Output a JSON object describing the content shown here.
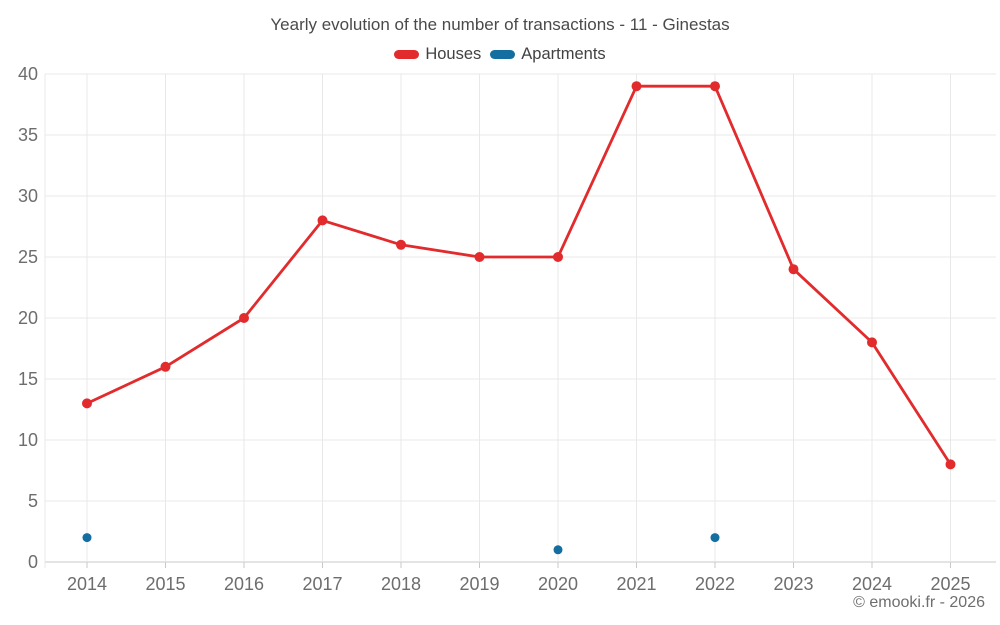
{
  "header": {
    "title": "Yearly evolution of the number of transactions - 11 - Ginestas"
  },
  "legend": {
    "items": [
      {
        "label": "Houses",
        "color": "#e12b2d"
      },
      {
        "label": "Apartments",
        "color": "#146e9f"
      }
    ]
  },
  "footer": {
    "copyright": "© emooki.fr - 2026"
  },
  "chart_data": {
    "type": "line",
    "title": "Yearly evolution of the number of transactions - 11 - Ginestas",
    "categories": [
      "2014",
      "2015",
      "2016",
      "2017",
      "2018",
      "2019",
      "2020",
      "2021",
      "2022",
      "2023",
      "2024",
      "2025"
    ],
    "series": [
      {
        "name": "Houses",
        "color": "#e12b2d",
        "line": true,
        "marker": true,
        "values": [
          13,
          16,
          20,
          28,
          26,
          25,
          25,
          39,
          39,
          24,
          18,
          8
        ]
      },
      {
        "name": "Apartments",
        "color": "#146e9f",
        "line": false,
        "marker": true,
        "values": [
          2,
          null,
          null,
          null,
          null,
          null,
          1,
          null,
          2,
          null,
          null,
          null
        ]
      }
    ],
    "xlabel": "",
    "ylabel": "",
    "ylim": [
      0,
      40
    ],
    "yticks": [
      0,
      5,
      10,
      15,
      20,
      25,
      30,
      35,
      40
    ],
    "grid": true,
    "legend_position": "top",
    "axis_label_color": "#6d6d6d",
    "grid_color": "#e8e8e8",
    "axis_line_color": "#c9c9c9"
  }
}
